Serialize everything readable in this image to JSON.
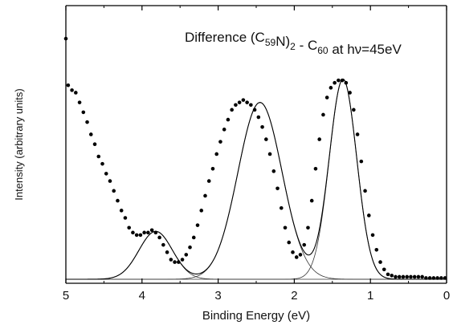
{
  "chart_data": {
    "type": "scatter",
    "title": "",
    "annotation": {
      "text": "Difference (C59N)2 - C60 at hν=45eV",
      "parts": [
        {
          "t": "Difference (C",
          "sub": false
        },
        {
          "t": "59",
          "sub": true
        },
        {
          "t": "N)",
          "sub": false
        },
        {
          "t": "2",
          "sub": true
        },
        {
          "t": " - C",
          "sub": false
        },
        {
          "t": "60",
          "sub": true
        },
        {
          "t": " at hν=45eV",
          "sub": false
        }
      ]
    },
    "xlabel": "Binding Energy (eV)",
    "ylabel": "Intensity (arbitrary units)",
    "x_reversed": true,
    "xlim": [
      5,
      0
    ],
    "ylim": [
      0,
      1.0
    ],
    "xticks": [
      5,
      4,
      3,
      2,
      1,
      0
    ],
    "xtick_labels": [
      "5",
      "4",
      "3",
      "2",
      "1",
      "0"
    ],
    "y_tick_labels_shown": false,
    "grid": false,
    "series": [
      {
        "kind": "points",
        "color": "#000000",
        "x": [
          5.0,
          4.97,
          4.92,
          4.87,
          4.82,
          4.77,
          4.72,
          4.67,
          4.62,
          4.57,
          4.52,
          4.47,
          4.42,
          4.37,
          4.32,
          4.27,
          4.22,
          4.17,
          4.12,
          4.07,
          4.02,
          3.97,
          3.92,
          3.87,
          3.82,
          3.77,
          3.72,
          3.67,
          3.62,
          3.57,
          3.52,
          3.47,
          3.42,
          3.37,
          3.32,
          3.27,
          3.22,
          3.17,
          3.12,
          3.07,
          3.02,
          2.97,
          2.92,
          2.87,
          2.82,
          2.77,
          2.72,
          2.67,
          2.62,
          2.57,
          2.52,
          2.47,
          2.42,
          2.37,
          2.32,
          2.27,
          2.22,
          2.17,
          2.12,
          2.07,
          2.02,
          1.97,
          1.92,
          1.87,
          1.82,
          1.77,
          1.72,
          1.67,
          1.62,
          1.57,
          1.52,
          1.47,
          1.42,
          1.37,
          1.32,
          1.27,
          1.22,
          1.17,
          1.12,
          1.07,
          1.02,
          0.97,
          0.92,
          0.87,
          0.82,
          0.77,
          0.72,
          0.67,
          0.62,
          0.57,
          0.52,
          0.47,
          0.42,
          0.37,
          0.32,
          0.27,
          0.22,
          0.17,
          0.12,
          0.07,
          0.02
        ],
        "y": [
          0.98,
          0.79,
          0.77,
          0.76,
          0.72,
          0.68,
          0.64,
          0.59,
          0.55,
          0.5,
          0.47,
          0.43,
          0.4,
          0.36,
          0.32,
          0.28,
          0.25,
          0.21,
          0.19,
          0.18,
          0.18,
          0.19,
          0.19,
          0.2,
          0.19,
          0.17,
          0.14,
          0.11,
          0.08,
          0.07,
          0.07,
          0.08,
          0.1,
          0.13,
          0.17,
          0.22,
          0.28,
          0.34,
          0.4,
          0.45,
          0.51,
          0.56,
          0.61,
          0.65,
          0.69,
          0.71,
          0.72,
          0.73,
          0.72,
          0.71,
          0.69,
          0.66,
          0.62,
          0.57,
          0.51,
          0.44,
          0.37,
          0.29,
          0.21,
          0.15,
          0.11,
          0.09,
          0.1,
          0.14,
          0.21,
          0.32,
          0.45,
          0.57,
          0.67,
          0.74,
          0.78,
          0.8,
          0.81,
          0.81,
          0.8,
          0.76,
          0.69,
          0.59,
          0.48,
          0.36,
          0.26,
          0.18,
          0.12,
          0.07,
          0.04,
          0.02,
          0.015,
          0.01,
          0.01,
          0.01,
          0.01,
          0.01,
          0.01,
          0.01,
          0.01,
          0.005,
          0.005,
          0.005,
          0.005,
          0.005,
          0.005
        ]
      },
      {
        "kind": "gaussian",
        "name": "",
        "center": 3.82,
        "amplitude": 0.195,
        "sigma": 0.22
      },
      {
        "kind": "gaussian",
        "name": "",
        "center": 2.45,
        "amplitude": 0.72,
        "sigma": 0.29
      },
      {
        "kind": "gaussian",
        "name": "",
        "center": 1.36,
        "amplitude": 0.815,
        "sigma": 0.18
      },
      {
        "kind": "sum_of_gaussians",
        "name": ""
      }
    ]
  }
}
